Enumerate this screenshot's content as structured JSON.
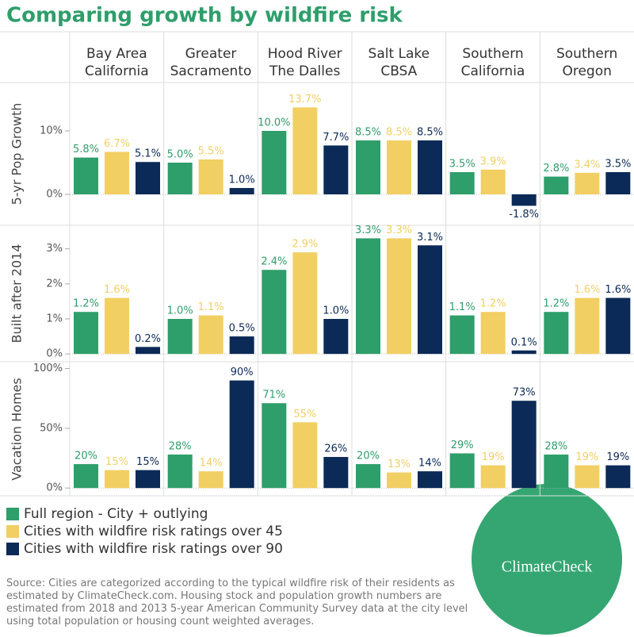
{
  "chart_data": {
    "type": "bar",
    "title": "Comparing growth by wildfire risk",
    "columns": [
      [
        "Bay Area",
        "California"
      ],
      [
        "Greater",
        "Sacramento"
      ],
      [
        "Hood River",
        "The Dalles"
      ],
      [
        "Salt Lake",
        "CBSA"
      ],
      [
        "Southern",
        "California"
      ],
      [
        "Southern",
        "Oregon"
      ]
    ],
    "series": [
      {
        "name": "Full region - City + outlying",
        "color": "#2e9e6b"
      },
      {
        "name": "Cities with wildfire risk ratings over 45",
        "color": "#f2cf63"
      },
      {
        "name": "Cities with wildfire risk ratings over 90",
        "color": "#0b2a57"
      }
    ],
    "rows": [
      {
        "label": "5-yr Pop Growth",
        "ylim": [
          -4.75,
          17.5
        ],
        "yticks": [
          {
            "value": 0,
            "label": "0%"
          },
          {
            "value": 10,
            "label": "10%"
          }
        ],
        "values": [
          [
            5.8,
            6.7,
            5.1
          ],
          [
            5.0,
            5.5,
            1.0
          ],
          [
            10.0,
            13.7,
            7.7
          ],
          [
            8.5,
            8.5,
            8.5
          ],
          [
            3.5,
            3.9,
            -1.8
          ],
          [
            2.8,
            3.4,
            3.5
          ]
        ],
        "value_labels": [
          [
            "5.8%",
            "6.7%",
            "5.1%"
          ],
          [
            "5.0%",
            "5.5%",
            "1.0%"
          ],
          [
            "10.0%",
            "13.7%",
            "7.7%"
          ],
          [
            "8.5%",
            "8.5%",
            "8.5%"
          ],
          [
            "3.5%",
            "3.9%",
            "-1.8%"
          ],
          [
            "2.8%",
            "3.4%",
            "3.5%"
          ]
        ]
      },
      {
        "label": "Built after 2014",
        "ylim": [
          -0.2,
          3.65
        ],
        "yticks": [
          {
            "value": 0,
            "label": "0%"
          },
          {
            "value": 1,
            "label": "1%"
          },
          {
            "value": 2,
            "label": "2%"
          },
          {
            "value": 3,
            "label": "3%"
          }
        ],
        "values": [
          [
            1.2,
            1.6,
            0.2
          ],
          [
            1.0,
            1.1,
            0.5
          ],
          [
            2.4,
            2.9,
            1.0
          ],
          [
            3.3,
            3.3,
            3.1
          ],
          [
            1.1,
            1.2,
            0.1
          ],
          [
            1.2,
            1.6,
            1.6
          ]
        ],
        "value_labels": [
          [
            "1.2%",
            "1.6%",
            "0.2%"
          ],
          [
            "1.0%",
            "1.1%",
            "0.5%"
          ],
          [
            "2.4%",
            "2.9%",
            "1.0%"
          ],
          [
            "3.3%",
            "3.3%",
            "3.1%"
          ],
          [
            "1.1%",
            "1.2%",
            "0.1%"
          ],
          [
            "1.2%",
            "1.6%",
            "1.6%"
          ]
        ]
      },
      {
        "label": "Vacation Homes",
        "ylim": [
          -6.5,
          105
        ],
        "yticks": [
          {
            "value": 0,
            "label": "0%"
          },
          {
            "value": 50,
            "label": "50%"
          },
          {
            "value": 100,
            "label": "100%"
          }
        ],
        "values": [
          [
            20,
            15,
            15
          ],
          [
            28,
            14,
            90
          ],
          [
            71,
            55,
            26
          ],
          [
            20,
            13,
            14
          ],
          [
            29,
            19,
            73
          ],
          [
            28,
            19,
            19
          ]
        ],
        "value_labels": [
          [
            "20%",
            "15%",
            "15%"
          ],
          [
            "28%",
            "14%",
            "90%"
          ],
          [
            "71%",
            "55%",
            "26%"
          ],
          [
            "20%",
            "13%",
            "14%"
          ],
          [
            "29%",
            "19%",
            "73%"
          ],
          [
            "28%",
            "19%",
            "19%"
          ]
        ]
      }
    ],
    "source": "Source: Cities are categorized according to the typical wildfire risk of their residents as estimated by ClimateCheck.com. Housing stock and population growth numbers are estimated from 2018 and 2013 5-year American Community Survey data at the city level using total population or housing count weighted averages.",
    "logo": "ClimateCheck"
  }
}
